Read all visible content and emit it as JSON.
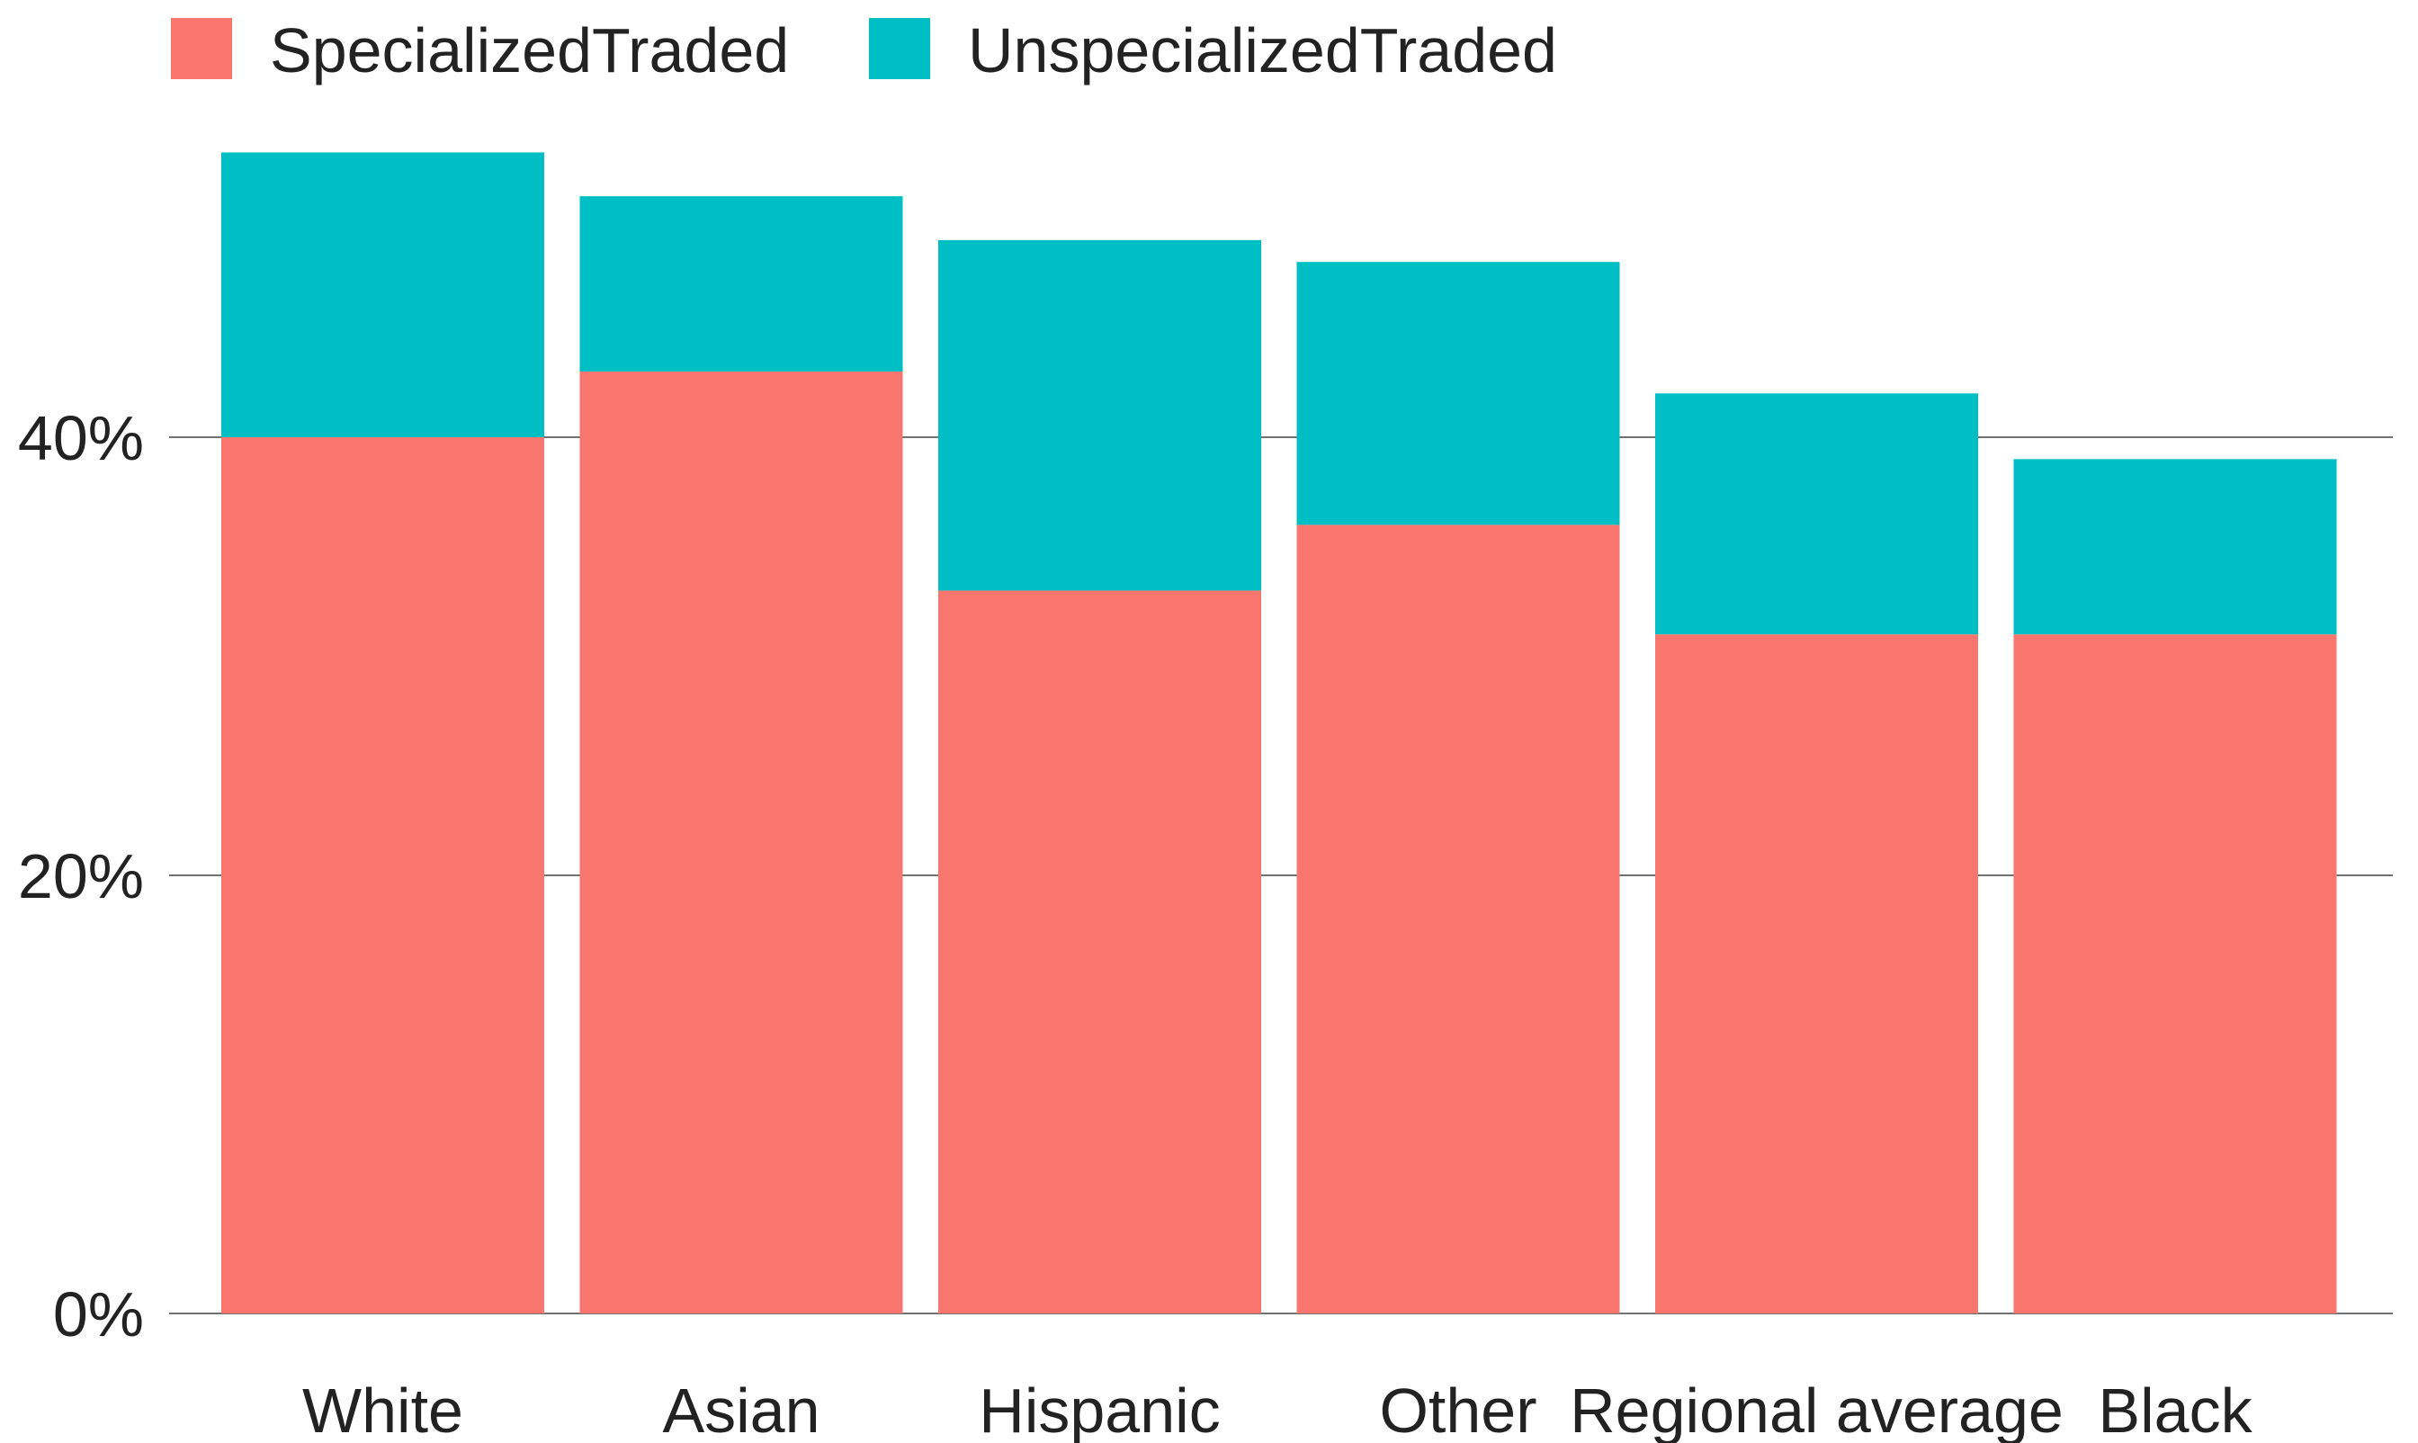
{
  "chart_data": {
    "type": "bar",
    "stacked": true,
    "categories": [
      "White",
      "Asian",
      "Hispanic",
      "Other",
      "Regional average",
      "Black"
    ],
    "series": [
      {
        "name": "SpecializedTraded",
        "color": "#F8766D",
        "values": [
          0.4,
          0.43,
          0.33,
          0.36,
          0.31,
          0.31
        ]
      },
      {
        "name": "UnspecializedTraded",
        "color": "#00BFC4",
        "values": [
          0.13,
          0.08,
          0.16,
          0.12,
          0.11,
          0.08
        ]
      }
    ],
    "ylim": [
      0,
      0.56
    ],
    "yticks": [
      {
        "value": 0,
        "label": "0%"
      },
      {
        "value": 0.2,
        "label": "20%"
      },
      {
        "value": 0.4,
        "label": "40%"
      }
    ],
    "grid": true,
    "legend_position": "top-left",
    "title": "",
    "xlabel": "",
    "ylabel": ""
  }
}
